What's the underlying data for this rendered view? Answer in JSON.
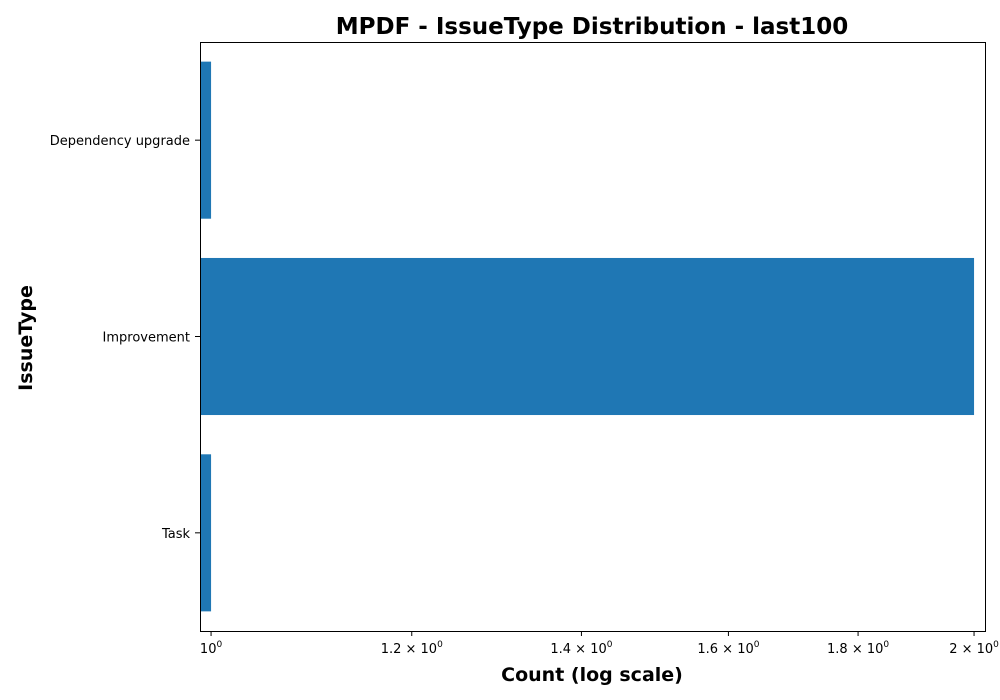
{
  "chart_data": {
    "type": "bar",
    "orientation": "horizontal",
    "title": "MPDF - IssueType Distribution - last100",
    "xlabel": "Count (log scale)",
    "ylabel": "IssueType",
    "x_scale": "log",
    "xlim": [
      0.99,
      2.02
    ],
    "categories": [
      "Dependency upgrade",
      "Improvement",
      "Task"
    ],
    "values": [
      1,
      2,
      1
    ],
    "x_ticks": [
      {
        "value": 1.0,
        "base": "10",
        "exp": "0"
      },
      {
        "value": 1.2,
        "base": "1.2 × 10",
        "exp": "0"
      },
      {
        "value": 1.4,
        "base": "1.4 × 10",
        "exp": "0"
      },
      {
        "value": 1.6,
        "base": "1.6 × 10",
        "exp": "0"
      },
      {
        "value": 1.8,
        "base": "1.8 × 10",
        "exp": "0"
      },
      {
        "value": 2.0,
        "base": "2 × 10",
        "exp": "0"
      }
    ],
    "bar_color": "#1f77b4",
    "grid": false,
    "legend": "none"
  }
}
